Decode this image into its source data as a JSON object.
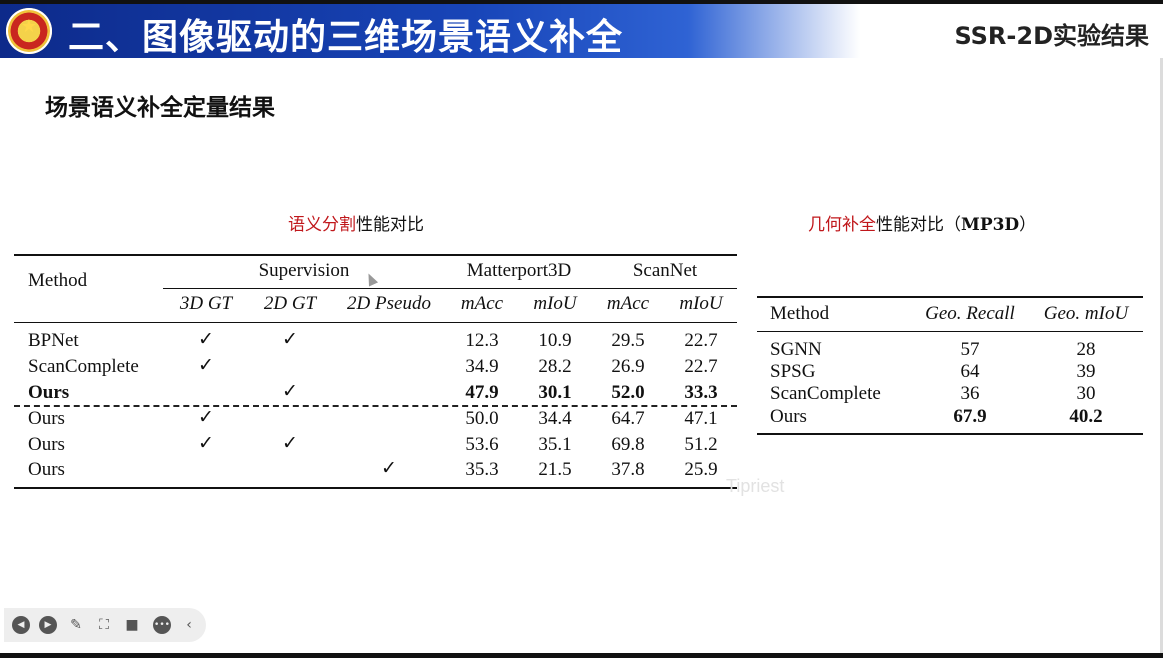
{
  "header": {
    "title": "二、图像驱动的三维场景语义补全",
    "section": "SSR-2D实验结果"
  },
  "subtitle": "场景语义补全定量结果",
  "left_caption": {
    "red": "语义分割",
    "black": "性能对比"
  },
  "right_caption": {
    "red": "几何补全",
    "black": "性能对比（",
    "bold": "MP3D",
    "end": "）"
  },
  "seg_table": {
    "method_header": "Method",
    "supervision_header": "Supervision",
    "mp3d_header": "Matterport3D",
    "scannet_header": "ScanNet",
    "sub_headers": [
      "3D GT",
      "2D GT",
      "2D Pseudo",
      "mAcc",
      "mIoU",
      "mAcc",
      "mIoU"
    ],
    "check": "✓",
    "rows": [
      {
        "method": "BPNet",
        "sup": [
          true,
          true,
          false
        ],
        "vals": [
          "12.3",
          "10.9",
          "29.5",
          "22.7"
        ],
        "bold": false
      },
      {
        "method": "ScanComplete",
        "sup": [
          true,
          false,
          false
        ],
        "vals": [
          "34.9",
          "28.2",
          "26.9",
          "22.7"
        ],
        "bold": false
      },
      {
        "method": "Ours",
        "sup": [
          false,
          true,
          false
        ],
        "vals": [
          "47.9",
          "30.1",
          "52.0",
          "33.3"
        ],
        "bold": true
      },
      {
        "method": "Ours",
        "sup": [
          true,
          false,
          false
        ],
        "vals": [
          "50.0",
          "34.4",
          "64.7",
          "47.1"
        ],
        "bold": false
      },
      {
        "method": "Ours",
        "sup": [
          true,
          true,
          false
        ],
        "vals": [
          "53.6",
          "35.1",
          "69.8",
          "51.2"
        ],
        "bold": false
      },
      {
        "method": "Ours",
        "sup": [
          false,
          false,
          true
        ],
        "vals": [
          "35.3",
          "21.5",
          "37.8",
          "25.9"
        ],
        "bold": false
      }
    ]
  },
  "geo_table": {
    "headers": [
      "Method",
      "Geo. Recall",
      "Geo. mIoU"
    ],
    "rows": [
      {
        "method": "SGNN",
        "recall": "57",
        "miou": "28",
        "bold": false
      },
      {
        "method": "SPSG",
        "recall": "64",
        "miou": "39",
        "bold": false
      },
      {
        "method": "ScanComplete",
        "recall": "36",
        "miou": "30",
        "bold": false
      },
      {
        "method": "Ours",
        "recall": "67.9",
        "miou": "40.2",
        "bold": true
      }
    ]
  },
  "watermark": "Tipriest",
  "toolbar": {
    "icons": [
      "prev-slide-icon",
      "next-slide-icon",
      "pen-icon",
      "focus-icon",
      "camera-icon",
      "more-icon",
      "collapse-icon"
    ]
  }
}
